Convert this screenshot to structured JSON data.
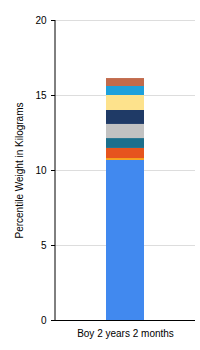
{
  "chart_data": {
    "type": "bar",
    "stacked": true,
    "ylabel": "Percentile Weight in Kilograms",
    "categories": [
      "Boy 2 years 2 months"
    ],
    "series": [
      {
        "color": "#4189ef",
        "values": [
          10.67
        ]
      },
      {
        "color": "#f5a11c",
        "values": [
          0.13
        ]
      },
      {
        "color": "#e6541e",
        "values": [
          0.67
        ]
      },
      {
        "color": "#1c6f8c",
        "values": [
          0.66
        ]
      },
      {
        "color": "#c2c2c2",
        "values": [
          0.94
        ]
      },
      {
        "color": "#1f3a66",
        "values": [
          0.93
        ]
      },
      {
        "color": "#fde28c",
        "values": [
          1.0
        ]
      },
      {
        "color": "#1ea1dc",
        "values": [
          0.6
        ]
      },
      {
        "color": "#c26b4c",
        "values": [
          0.53
        ]
      }
    ],
    "ylim": [
      0,
      20
    ],
    "yticks": [
      0,
      5,
      10,
      15,
      20
    ],
    "grid": true
  }
}
